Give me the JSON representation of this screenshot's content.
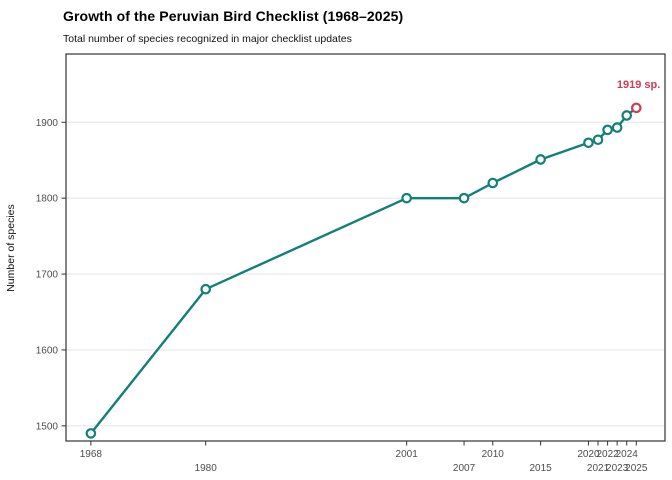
{
  "chart_data": {
    "type": "line",
    "title": "Growth of the Peruvian Bird Checklist (1968–2025)",
    "subtitle": "Total number of species recognized in major checklist updates",
    "xlabel": "",
    "ylabel": "Number of species",
    "x": [
      1968,
      1980,
      2001,
      2007,
      2010,
      2015,
      2020,
      2021,
      2022,
      2023,
      2024,
      2025
    ],
    "values": [
      1490,
      1680,
      1800,
      1800,
      1820,
      1851,
      1873,
      1877,
      1890,
      1893,
      1909,
      1919
    ],
    "x_tick_labels": [
      "1968",
      "1980",
      "2001",
      "2007",
      "2010",
      "2015",
      "2020",
      "2021",
      "2022",
      "2023",
      "2024",
      "2025"
    ],
    "y_ticks": [
      1500,
      1600,
      1700,
      1800,
      1900
    ],
    "xlim": [
      1965.4,
      2028
    ],
    "ylim": [
      1480,
      1990
    ],
    "grid": "horizontal-major-only",
    "legend": "none",
    "highlight": {
      "index": 11,
      "value_label": "1919 sp."
    },
    "annotation": {
      "text": "1919 sp.",
      "anchor_year": 2025,
      "anchor_value": 1919,
      "offset_x": 24,
      "offset_y": -20
    },
    "colors": {
      "line": "#12807a",
      "point_fill": "#ffffff",
      "highlight": "#d13b51",
      "grid": "#ebebeb",
      "panel_border": "#333333",
      "tick": "#333333",
      "tick_text": "#4d4d4d",
      "title_text": "#000000",
      "background": "#ffffff"
    }
  }
}
